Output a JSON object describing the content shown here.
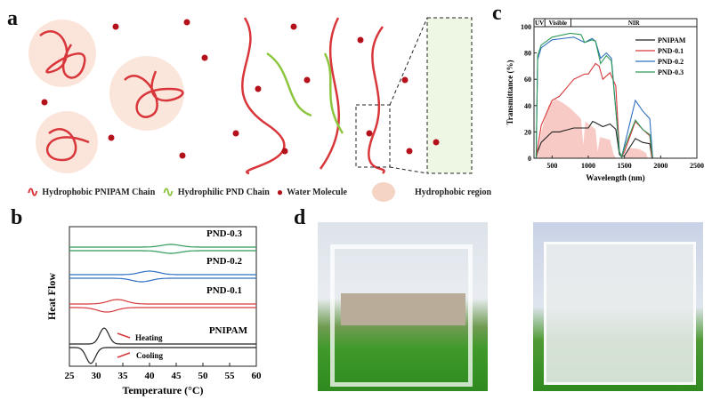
{
  "panel_labels": {
    "a": "a",
    "b": "b",
    "c": "c",
    "d": "d"
  },
  "legend_a": {
    "hydrophobic_chain": "Hydrophobic PNIPAM Chain",
    "hydrophilic_chain": "Hydrophilic PND Chain",
    "water": "Water Molecule",
    "region": "Hydrophobic region"
  },
  "colors": {
    "pnipam": "#222222",
    "pnd01": "#d6393b",
    "pnd02": "#2f6fc0",
    "pnd03": "#2e9b5a",
    "chain_red": "#d8363a",
    "chain_green": "#8cc63f",
    "region": "#f6c9b4",
    "solar": "#f4b4ad"
  },
  "chart_data": [
    {
      "id": "b",
      "type": "line",
      "xlabel": "Temperature (°C)",
      "ylabel": "Heat Flow",
      "xlim": [
        25,
        60
      ],
      "xticks": [
        25,
        30,
        35,
        40,
        45,
        50,
        55,
        60
      ],
      "annotations": {
        "heating": "Heating",
        "cooling": "Cooling"
      },
      "series": [
        {
          "name": "PND-0.3",
          "heating_peak_c": 44,
          "cooling_peak_c": 44
        },
        {
          "name": "PND-0.2",
          "heating_peak_c": 40,
          "cooling_peak_c": 38.5
        },
        {
          "name": "PND-0.1",
          "heating_peak_c": 34,
          "cooling_peak_c": 32
        },
        {
          "name": "PNIPAM",
          "heating_peak_c": 31.5,
          "cooling_peak_c": 29
        }
      ]
    },
    {
      "id": "c",
      "type": "line",
      "xlabel": "Wavelength (nm)",
      "ylabel": "Transmittance (%)",
      "xlim": [
        250,
        2500
      ],
      "ylim": [
        0,
        100
      ],
      "xticks": [
        500,
        1000,
        1500,
        2000,
        2500
      ],
      "yticks": [
        0,
        20,
        40,
        60,
        80,
        100
      ],
      "bands": [
        {
          "label": "UV",
          "range": [
            250,
            400
          ]
        },
        {
          "label": "Visible",
          "range": [
            400,
            760
          ]
        },
        {
          "label": "NIR",
          "range": [
            760,
            2500
          ]
        }
      ],
      "legend_position": "top-right",
      "series": [
        {
          "name": "PNIPAM",
          "points": [
            [
              280,
              0
            ],
            [
              300,
              5
            ],
            [
              350,
              12
            ],
            [
              500,
              20
            ],
            [
              600,
              20
            ],
            [
              800,
              23
            ],
            [
              1000,
              23
            ],
            [
              1060,
              28
            ],
            [
              1100,
              27
            ],
            [
              1200,
              24
            ],
            [
              1300,
              26
            ],
            [
              1380,
              22
            ],
            [
              1430,
              3
            ],
            [
              1460,
              1
            ],
            [
              1500,
              2
            ],
            [
              1650,
              15
            ],
            [
              1750,
              12
            ],
            [
              1850,
              11
            ],
            [
              1880,
              0
            ],
            [
              2500,
              0
            ]
          ]
        },
        {
          "name": "PND-0.1",
          "points": [
            [
              280,
              0
            ],
            [
              350,
              25
            ],
            [
              500,
              44
            ],
            [
              600,
              47
            ],
            [
              800,
              60
            ],
            [
              950,
              64
            ],
            [
              1000,
              64
            ],
            [
              1100,
              72
            ],
            [
              1150,
              70
            ],
            [
              1200,
              60
            ],
            [
              1300,
              65
            ],
            [
              1380,
              55
            ],
            [
              1430,
              5
            ],
            [
              1460,
              1
            ],
            [
              1500,
              5
            ],
            [
              1650,
              28
            ],
            [
              1750,
              22
            ],
            [
              1850,
              17
            ],
            [
              1880,
              0
            ],
            [
              2500,
              0
            ]
          ]
        },
        {
          "name": "PND-0.2",
          "points": [
            [
              280,
              0
            ],
            [
              300,
              75
            ],
            [
              350,
              84
            ],
            [
              500,
              90
            ],
            [
              800,
              92
            ],
            [
              950,
              88
            ],
            [
              1050,
              91
            ],
            [
              1100,
              89
            ],
            [
              1170,
              76
            ],
            [
              1250,
              80
            ],
            [
              1320,
              76
            ],
            [
              1430,
              5
            ],
            [
              1460,
              1
            ],
            [
              1500,
              10
            ],
            [
              1650,
              44
            ],
            [
              1750,
              36
            ],
            [
              1850,
              30
            ],
            [
              1890,
              0
            ],
            [
              2500,
              0
            ]
          ]
        },
        {
          "name": "PND-0.3",
          "points": [
            [
              280,
              0
            ],
            [
              300,
              78
            ],
            [
              350,
              86
            ],
            [
              500,
              92
            ],
            [
              750,
              95
            ],
            [
              900,
              94
            ],
            [
              950,
              88
            ],
            [
              1050,
              90
            ],
            [
              1100,
              89
            ],
            [
              1170,
              72
            ],
            [
              1250,
              78
            ],
            [
              1320,
              74
            ],
            [
              1430,
              5
            ],
            [
              1460,
              1
            ],
            [
              1500,
              8
            ],
            [
              1650,
              29
            ],
            [
              1750,
              22
            ],
            [
              1850,
              18
            ],
            [
              1890,
              0
            ],
            [
              2500,
              0
            ]
          ]
        }
      ],
      "solar_spectrum": [
        [
          300,
          0
        ],
        [
          350,
          20
        ],
        [
          450,
          40
        ],
        [
          550,
          45
        ],
        [
          650,
          42
        ],
        [
          750,
          38
        ],
        [
          900,
          30
        ],
        [
          930,
          10
        ],
        [
          960,
          28
        ],
        [
          1100,
          22
        ],
        [
          1130,
          5
        ],
        [
          1160,
          16
        ],
        [
          1300,
          14
        ],
        [
          1350,
          3
        ],
        [
          1380,
          0
        ],
        [
          1500,
          0
        ],
        [
          1550,
          8
        ],
        [
          1700,
          7
        ],
        [
          1800,
          4
        ],
        [
          1820,
          0
        ]
      ]
    }
  ]
}
